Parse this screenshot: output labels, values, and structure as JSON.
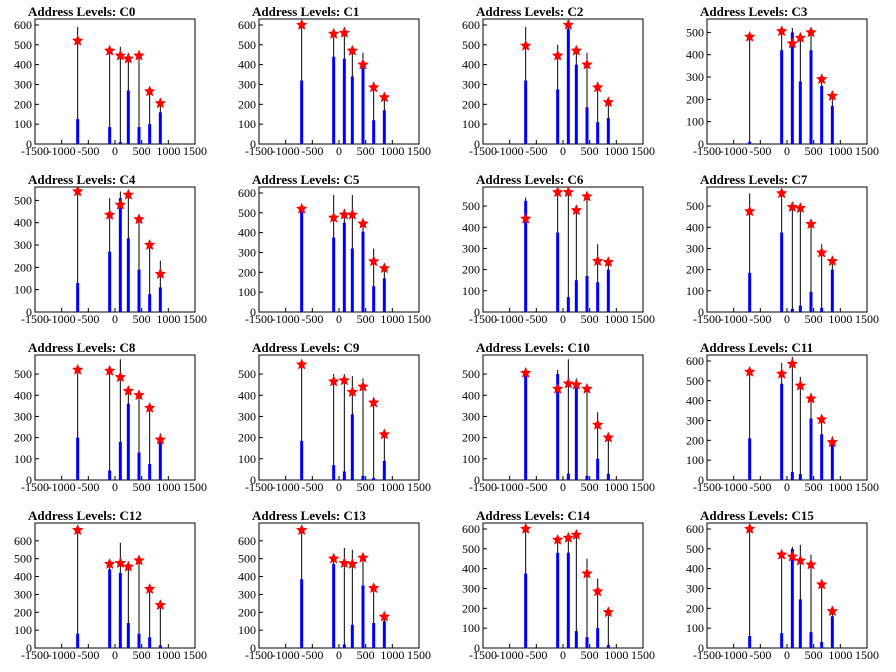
{
  "chart_data": [
    {
      "type": "bar",
      "title": "Address Levels: C0",
      "xlim": [
        -1500,
        1500
      ],
      "ylim": [
        0,
        630
      ],
      "xticks": [
        "-1500",
        "-1000",
        "-500",
        "0",
        "500",
        "1000",
        "1500"
      ],
      "yticks": [
        "0",
        "100",
        "200",
        "300",
        "400",
        "500",
        "600"
      ],
      "x": [
        -700,
        -100,
        100,
        250,
        450,
        650,
        850
      ],
      "black": [
        590,
        470,
        490,
        460,
        450,
        280,
        230
      ],
      "blue": [
        125,
        85,
        10,
        270,
        85,
        100,
        160
      ],
      "markers": [
        520,
        470,
        445,
        430,
        445,
        265,
        205
      ]
    },
    {
      "type": "bar",
      "title": "Address Levels: C1",
      "xlim": [
        -1500,
        1500
      ],
      "ylim": [
        0,
        630
      ],
      "xticks": [
        "-1500",
        "-1000",
        "-500",
        "0",
        "500",
        "1000",
        "1500"
      ],
      "yticks": [
        "0",
        "100",
        "200",
        "300",
        "400",
        "500",
        "600"
      ],
      "x": [
        -700,
        -100,
        100,
        250,
        450,
        650,
        850
      ],
      "black": [
        610,
        580,
        590,
        480,
        460,
        310,
        250
      ],
      "blue": [
        320,
        440,
        430,
        340,
        420,
        120,
        170
      ],
      "markers": [
        600,
        555,
        560,
        470,
        400,
        285,
        235
      ]
    },
    {
      "type": "bar",
      "title": "Address Levels: C2",
      "xlim": [
        -1500,
        1500
      ],
      "ylim": [
        0,
        630
      ],
      "xticks": [
        "-1500",
        "-1000",
        "-500",
        "0",
        "500",
        "1000",
        "1500"
      ],
      "yticks": [
        "0",
        "100",
        "200",
        "300",
        "400",
        "500",
        "600"
      ],
      "x": [
        -700,
        -100,
        100,
        250,
        450,
        650,
        850
      ],
      "black": [
        590,
        500,
        620,
        480,
        460,
        310,
        230
      ],
      "blue": [
        320,
        275,
        580,
        400,
        185,
        110,
        130
      ],
      "markers": [
        495,
        445,
        600,
        470,
        400,
        285,
        210
      ]
    },
    {
      "type": "bar",
      "title": "Address Levels: C3",
      "xlim": [
        -1500,
        1500
      ],
      "ylim": [
        0,
        560
      ],
      "xticks": [
        "-1500",
        "-1000",
        "-500",
        "0",
        "500",
        "1000",
        "1500"
      ],
      "yticks": [
        "0",
        "100",
        "200",
        "300",
        "400",
        "500"
      ],
      "x": [
        -700,
        -100,
        100,
        250,
        450,
        650,
        850
      ],
      "black": [
        500,
        520,
        520,
        500,
        510,
        300,
        220
      ],
      "blue": [
        10,
        420,
        500,
        280,
        420,
        260,
        170
      ],
      "markers": [
        480,
        505,
        450,
        475,
        500,
        290,
        215
      ]
    },
    {
      "type": "bar",
      "title": "Address Levels: C4",
      "xlim": [
        -1500,
        1500
      ],
      "ylim": [
        0,
        560
      ],
      "xticks": [
        "-1500",
        "-1000",
        "-500",
        "0",
        "500",
        "1000",
        "1500"
      ],
      "yticks": [
        "0",
        "100",
        "200",
        "300",
        "400",
        "500"
      ],
      "x": [
        -700,
        -100,
        100,
        250,
        450,
        650,
        850
      ],
      "black": [
        560,
        510,
        540,
        540,
        430,
        310,
        230
      ],
      "blue": [
        130,
        270,
        510,
        330,
        190,
        80,
        110
      ],
      "markers": [
        540,
        435,
        480,
        525,
        415,
        300,
        170
      ]
    },
    {
      "type": "bar",
      "title": "Address Levels: C5",
      "xlim": [
        -1500,
        1500
      ],
      "ylim": [
        0,
        630
      ],
      "xticks": [
        "-1500",
        "-1000",
        "-500",
        "0",
        "500",
        "1000",
        "1500"
      ],
      "yticks": [
        "0",
        "100",
        "200",
        "300",
        "400",
        "500",
        "600"
      ],
      "x": [
        -700,
        -100,
        100,
        250,
        450,
        650,
        850
      ],
      "black": [
        530,
        590,
        520,
        590,
        470,
        320,
        240
      ],
      "blue": [
        520,
        375,
        450,
        320,
        405,
        130,
        170
      ],
      "markers": [
        520,
        475,
        490,
        490,
        445,
        255,
        220
      ]
    },
    {
      "type": "bar",
      "title": "Address Levels: C6",
      "xlim": [
        -1500,
        1500
      ],
      "ylim": [
        0,
        590
      ],
      "xticks": [
        "-1500",
        "-1000",
        "-500",
        "0",
        "500",
        "1000",
        "1500"
      ],
      "yticks": [
        "0",
        "100",
        "200",
        "300",
        "400",
        "500"
      ],
      "x": [
        -700,
        -100,
        100,
        250,
        450,
        650,
        850
      ],
      "black": [
        540,
        580,
        590,
        500,
        560,
        320,
        250
      ],
      "blue": [
        525,
        375,
        70,
        150,
        170,
        140,
        200
      ],
      "markers": [
        440,
        565,
        565,
        480,
        545,
        240,
        235
      ]
    },
    {
      "type": "bar",
      "title": "Address Levels: C7",
      "xlim": [
        -1500,
        1500
      ],
      "ylim": [
        0,
        590
      ],
      "xticks": [
        "-1500",
        "-1000",
        "-500",
        "0",
        "500",
        "1000",
        "1500"
      ],
      "yticks": [
        "0",
        "100",
        "200",
        "300",
        "400",
        "500"
      ],
      "x": [
        -700,
        -100,
        100,
        250,
        450,
        650,
        850
      ],
      "black": [
        560,
        580,
        520,
        500,
        430,
        320,
        250
      ],
      "blue": [
        185,
        375,
        15,
        30,
        95,
        20,
        200
      ],
      "markers": [
        475,
        560,
        495,
        490,
        415,
        280,
        240
      ]
    },
    {
      "type": "bar",
      "title": "Address Levels: C8",
      "xlim": [
        -1500,
        1500
      ],
      "ylim": [
        0,
        590
      ],
      "xticks": [
        "-1500",
        "-1000",
        "-500",
        "0",
        "500",
        "1000",
        "1500"
      ],
      "yticks": [
        "0",
        "100",
        "200",
        "300",
        "400",
        "500"
      ],
      "x": [
        -700,
        -100,
        100,
        250,
        450,
        650,
        850
      ],
      "black": [
        540,
        520,
        570,
        430,
        410,
        360,
        220
      ],
      "blue": [
        200,
        45,
        180,
        360,
        130,
        75,
        200
      ],
      "markers": [
        520,
        515,
        485,
        420,
        400,
        340,
        190
      ]
    },
    {
      "type": "bar",
      "title": "Address Levels: C9",
      "xlim": [
        -1500,
        1500
      ],
      "ylim": [
        0,
        590
      ],
      "xticks": [
        "-1500",
        "-1000",
        "-500",
        "0",
        "500",
        "1000",
        "1500"
      ],
      "yticks": [
        "0",
        "100",
        "200",
        "300",
        "400",
        "500"
      ],
      "x": [
        -700,
        -100,
        100,
        250,
        450,
        650,
        850
      ],
      "black": [
        560,
        500,
        500,
        490,
        480,
        390,
        220
      ],
      "blue": [
        185,
        70,
        40,
        310,
        20,
        10,
        90
      ],
      "markers": [
        545,
        465,
        470,
        415,
        440,
        365,
        215
      ]
    },
    {
      "type": "bar",
      "title": "Address Levels: C10",
      "xlim": [
        -1500,
        1500
      ],
      "ylim": [
        0,
        590
      ],
      "xticks": [
        "-1500",
        "-1000",
        "-500",
        "0",
        "500",
        "1000",
        "1500"
      ],
      "yticks": [
        "0",
        "100",
        "200",
        "300",
        "400",
        "500"
      ],
      "x": [
        -700,
        -100,
        100,
        250,
        450,
        650,
        850
      ],
      "black": [
        530,
        520,
        570,
        480,
        440,
        320,
        220
      ],
      "blue": [
        500,
        500,
        30,
        455,
        20,
        100,
        30
      ],
      "markers": [
        505,
        430,
        455,
        450,
        430,
        260,
        200
      ]
    },
    {
      "type": "bar",
      "title": "Address Levels: C11",
      "xlim": [
        -1500,
        1500
      ],
      "ylim": [
        0,
        630
      ],
      "xticks": [
        "-1500",
        "-1000",
        "-500",
        "0",
        "500",
        "1000",
        "1500"
      ],
      "yticks": [
        "0",
        "100",
        "200",
        "300",
        "400",
        "500",
        "600"
      ],
      "x": [
        -700,
        -100,
        100,
        250,
        450,
        650,
        850
      ],
      "black": [
        570,
        590,
        620,
        520,
        440,
        330,
        220
      ],
      "blue": [
        210,
        485,
        40,
        30,
        310,
        230,
        190
      ],
      "markers": [
        545,
        535,
        585,
        475,
        410,
        305,
        190
      ]
    },
    {
      "type": "bar",
      "title": "Address Levels: C12",
      "xlim": [
        -1500,
        1500
      ],
      "ylim": [
        0,
        700
      ],
      "xticks": [
        "-1500",
        "-1000",
        "-500",
        "0",
        "500",
        "1000",
        "1500"
      ],
      "yticks": [
        "0",
        "100",
        "200",
        "300",
        "400",
        "500",
        "600"
      ],
      "x": [
        -700,
        -100,
        100,
        250,
        450,
        650,
        850
      ],
      "black": [
        680,
        480,
        590,
        470,
        500,
        350,
        250
      ],
      "blue": [
        80,
        440,
        420,
        140,
        80,
        60,
        15
      ],
      "markers": [
        660,
        470,
        475,
        455,
        490,
        330,
        240
      ]
    },
    {
      "type": "bar",
      "title": "Address Levels: C13",
      "xlim": [
        -1500,
        1500
      ],
      "ylim": [
        0,
        700
      ],
      "xticks": [
        "-1500",
        "-1000",
        "-500",
        "0",
        "500",
        "1000",
        "1500"
      ],
      "yticks": [
        "0",
        "100",
        "200",
        "300",
        "400",
        "500",
        "600"
      ],
      "x": [
        -700,
        -100,
        100,
        250,
        450,
        650,
        850
      ],
      "black": [
        680,
        520,
        560,
        550,
        530,
        350,
        200
      ],
      "blue": [
        385,
        470,
        20,
        130,
        350,
        140,
        150
      ],
      "markers": [
        660,
        500,
        475,
        470,
        505,
        335,
        175
      ]
    },
    {
      "type": "bar",
      "title": "Address Levels: C14",
      "xlim": [
        -1500,
        1500
      ],
      "ylim": [
        0,
        630
      ],
      "xticks": [
        "-1500",
        "-1000",
        "-500",
        "0",
        "500",
        "1000",
        "1500"
      ],
      "yticks": [
        "0",
        "100",
        "200",
        "300",
        "400",
        "500",
        "600"
      ],
      "x": [
        -700,
        -100,
        100,
        250,
        450,
        650,
        850
      ],
      "black": [
        610,
        560,
        580,
        580,
        450,
        350,
        190
      ],
      "blue": [
        375,
        480,
        480,
        85,
        55,
        100,
        15
      ],
      "markers": [
        600,
        545,
        555,
        570,
        375,
        285,
        180
      ]
    },
    {
      "type": "bar",
      "title": "Address Levels: C15",
      "xlim": [
        -1500,
        1500
      ],
      "ylim": [
        0,
        630
      ],
      "xticks": [
        "-1500",
        "-1000",
        "-500",
        "0",
        "500",
        "1000",
        "1500"
      ],
      "yticks": [
        "0",
        "100",
        "200",
        "300",
        "400",
        "500",
        "600"
      ],
      "x": [
        -700,
        -100,
        100,
        250,
        450,
        650,
        850
      ],
      "black": [
        610,
        480,
        510,
        520,
        470,
        340,
        200
      ],
      "blue": [
        60,
        75,
        500,
        245,
        80,
        30,
        160
      ],
      "markers": [
        600,
        470,
        460,
        440,
        420,
        320,
        185
      ]
    }
  ],
  "colors": {
    "black_bar": "#000000",
    "blue_bar": "#0000ff",
    "marker": "#ff0000",
    "axis": "#000000"
  }
}
